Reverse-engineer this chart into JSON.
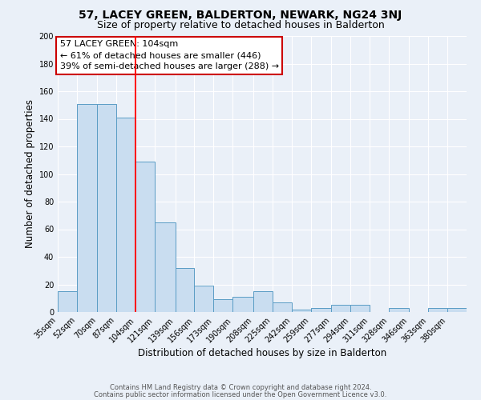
{
  "title": "57, LACEY GREEN, BALDERTON, NEWARK, NG24 3NJ",
  "subtitle": "Size of property relative to detached houses in Balderton",
  "xlabel": "Distribution of detached houses by size in Balderton",
  "ylabel": "Number of detached properties",
  "bar_left_edges": [
    35,
    52,
    70,
    87,
    104,
    121,
    139,
    156,
    173,
    190,
    208,
    225,
    242,
    259,
    277,
    294,
    311,
    328,
    346,
    363,
    380
  ],
  "bar_widths": [
    17,
    18,
    17,
    17,
    17,
    18,
    17,
    17,
    17,
    18,
    17,
    17,
    17,
    18,
    17,
    17,
    17,
    18,
    17,
    17,
    17
  ],
  "bar_heights": [
    15,
    151,
    151,
    141,
    109,
    65,
    32,
    19,
    9,
    11,
    15,
    7,
    2,
    3,
    5,
    5,
    0,
    3,
    0,
    3,
    3
  ],
  "x_tick_labels": [
    "35sqm",
    "52sqm",
    "70sqm",
    "87sqm",
    "104sqm",
    "121sqm",
    "139sqm",
    "156sqm",
    "173sqm",
    "190sqm",
    "208sqm",
    "225sqm",
    "242sqm",
    "259sqm",
    "277sqm",
    "294sqm",
    "311sqm",
    "328sqm",
    "346sqm",
    "363sqm",
    "380sqm"
  ],
  "tick_positions": [
    35,
    52,
    70,
    87,
    104,
    121,
    139,
    156,
    173,
    190,
    208,
    225,
    242,
    259,
    277,
    294,
    311,
    328,
    346,
    363,
    380
  ],
  "bar_color": "#c9ddf0",
  "bar_edge_color": "#5a9cc5",
  "red_line_x": 104,
  "ylim": [
    0,
    200
  ],
  "yticks": [
    0,
    20,
    40,
    60,
    80,
    100,
    120,
    140,
    160,
    180,
    200
  ],
  "ann_line1": "57 LACEY GREEN: 104sqm",
  "ann_line2": "← 61% of detached houses are smaller (446)",
  "ann_line3": "39% of semi-detached houses are larger (288) →",
  "footer_line1": "Contains HM Land Registry data © Crown copyright and database right 2024.",
  "footer_line2": "Contains public sector information licensed under the Open Government Licence v3.0.",
  "bg_color": "#eaf0f8",
  "grid_color": "#ffffff",
  "title_fontsize": 10,
  "subtitle_fontsize": 9,
  "axis_label_fontsize": 8.5,
  "tick_fontsize": 7,
  "annotation_fontsize": 8,
  "footer_fontsize": 6
}
